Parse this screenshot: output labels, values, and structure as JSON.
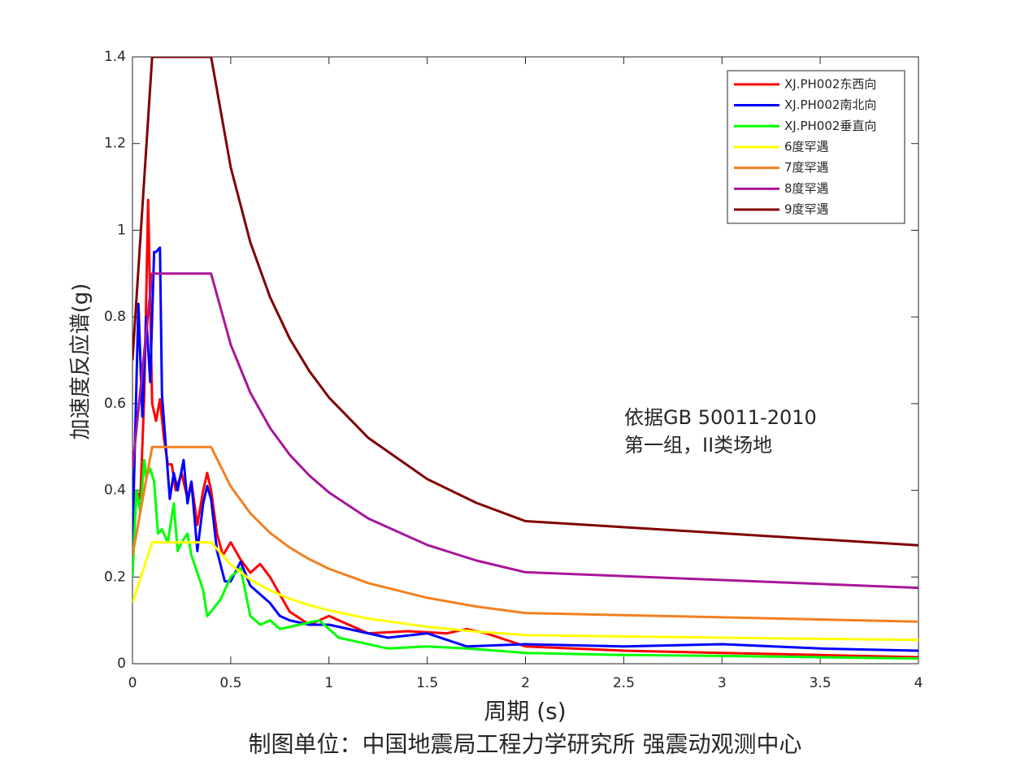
{
  "chart_data": {
    "type": "line",
    "xlabel": "周期 (s)",
    "ylabel": "加速度反应谱(g)",
    "annotations": [
      "依据GB 50011-2010",
      "第一组，II类场地"
    ],
    "caption": "制图单位：中国地震局工程力学研究所 强震动观测中心",
    "xlim": [
      0,
      4
    ],
    "ylim": [
      0,
      1.4
    ],
    "xticks": [
      0,
      0.5,
      1,
      1.5,
      2,
      2.5,
      3,
      3.5,
      4
    ],
    "yticks": [
      0,
      0.2,
      0.4,
      0.6,
      0.8,
      1,
      1.2,
      1.4
    ],
    "legend": "northeast",
    "series": [
      {
        "name": "XJ.PH002东西向",
        "color": "#ff0000",
        "x": [
          0,
          0.02,
          0.04,
          0.06,
          0.08,
          0.1,
          0.12,
          0.14,
          0.16,
          0.18,
          0.2,
          0.22,
          0.25,
          0.28,
          0.3,
          0.33,
          0.36,
          0.38,
          0.4,
          0.43,
          0.46,
          0.5,
          0.55,
          0.6,
          0.65,
          0.7,
          0.8,
          0.9,
          1.0,
          1.2,
          1.4,
          1.6,
          1.7,
          1.8,
          2.0,
          2.5,
          3.0,
          3.5,
          4.0
        ],
        "values": [
          0.25,
          0.4,
          0.38,
          0.62,
          1.07,
          0.6,
          0.56,
          0.61,
          0.52,
          0.46,
          0.46,
          0.4,
          0.44,
          0.38,
          0.42,
          0.32,
          0.4,
          0.44,
          0.4,
          0.3,
          0.25,
          0.28,
          0.24,
          0.21,
          0.23,
          0.2,
          0.12,
          0.09,
          0.11,
          0.07,
          0.075,
          0.07,
          0.08,
          0.07,
          0.04,
          0.03,
          0.025,
          0.02,
          0.015
        ]
      },
      {
        "name": "XJ.PH002南北向",
        "color": "#0000ff",
        "x": [
          0,
          0.03,
          0.05,
          0.07,
          0.09,
          0.11,
          0.12,
          0.14,
          0.15,
          0.17,
          0.19,
          0.21,
          0.23,
          0.26,
          0.28,
          0.3,
          0.33,
          0.36,
          0.38,
          0.4,
          0.43,
          0.47,
          0.5,
          0.55,
          0.6,
          0.7,
          0.75,
          0.8,
          0.9,
          1.0,
          1.2,
          1.3,
          1.5,
          1.7,
          2.0,
          2.5,
          3.0,
          3.5,
          4.0
        ],
        "values": [
          0.28,
          0.83,
          0.57,
          0.8,
          0.65,
          0.95,
          0.95,
          0.96,
          0.62,
          0.5,
          0.38,
          0.44,
          0.4,
          0.47,
          0.37,
          0.42,
          0.26,
          0.37,
          0.41,
          0.38,
          0.26,
          0.19,
          0.19,
          0.235,
          0.18,
          0.14,
          0.11,
          0.1,
          0.09,
          0.09,
          0.07,
          0.06,
          0.07,
          0.04,
          0.045,
          0.04,
          0.045,
          0.035,
          0.03
        ]
      },
      {
        "name": "XJ.PH002垂直向",
        "color": "#00ff00",
        "x": [
          0,
          0.02,
          0.04,
          0.06,
          0.07,
          0.09,
          0.11,
          0.13,
          0.15,
          0.18,
          0.21,
          0.23,
          0.25,
          0.28,
          0.3,
          0.33,
          0.36,
          0.38,
          0.4,
          0.45,
          0.5,
          0.55,
          0.6,
          0.65,
          0.7,
          0.75,
          0.85,
          0.95,
          1.05,
          1.15,
          1.3,
          1.5,
          1.7,
          2.0,
          2.5,
          3.0,
          3.5,
          4.0
        ],
        "values": [
          0.2,
          0.4,
          0.35,
          0.47,
          0.43,
          0.45,
          0.42,
          0.3,
          0.31,
          0.28,
          0.37,
          0.26,
          0.28,
          0.3,
          0.25,
          0.21,
          0.17,
          0.11,
          0.12,
          0.15,
          0.2,
          0.22,
          0.11,
          0.09,
          0.1,
          0.08,
          0.09,
          0.1,
          0.06,
          0.05,
          0.035,
          0.04,
          0.035,
          0.025,
          0.02,
          0.018,
          0.015,
          0.012
        ]
      },
      {
        "name": "6度罕遇",
        "color": "#ffff00",
        "x": [
          0,
          0.1,
          0.4,
          0.5,
          0.6,
          0.7,
          0.8,
          0.9,
          1.0,
          1.2,
          1.5,
          1.75,
          2.0,
          3.0,
          4.0
        ],
        "values": [
          0.14,
          0.28,
          0.28,
          0.229,
          0.194,
          0.169,
          0.15,
          0.135,
          0.123,
          0.104,
          0.085,
          0.074,
          0.066,
          0.06,
          0.055
        ]
      },
      {
        "name": "7度罕遇",
        "color": "#f28022",
        "x": [
          0,
          0.1,
          0.4,
          0.5,
          0.6,
          0.7,
          0.8,
          0.9,
          1.0,
          1.2,
          1.5,
          1.75,
          2.0,
          3.0,
          4.0
        ],
        "values": [
          0.25,
          0.5,
          0.5,
          0.409,
          0.347,
          0.302,
          0.268,
          0.241,
          0.219,
          0.186,
          0.152,
          0.132,
          0.117,
          0.107,
          0.097
        ]
      },
      {
        "name": "8度罕遇",
        "color": "#a8169a",
        "x": [
          0,
          0.1,
          0.4,
          0.5,
          0.6,
          0.7,
          0.8,
          0.9,
          1.0,
          1.2,
          1.5,
          1.75,
          2.0,
          3.0,
          4.0
        ],
        "values": [
          0.45,
          0.9,
          0.9,
          0.736,
          0.625,
          0.544,
          0.482,
          0.434,
          0.395,
          0.335,
          0.274,
          0.238,
          0.211,
          0.193,
          0.175
        ]
      },
      {
        "name": "9度罕遇",
        "color": "#800000",
        "x": [
          0,
          0.1,
          0.4,
          0.5,
          0.6,
          0.7,
          0.8,
          0.9,
          1.0,
          1.2,
          1.5,
          1.75,
          2.0,
          3.0,
          4.0
        ],
        "values": [
          0.7,
          1.4,
          1.4,
          1.145,
          0.972,
          0.846,
          0.75,
          0.675,
          0.614,
          0.521,
          0.426,
          0.371,
          0.329,
          0.301,
          0.273
        ]
      }
    ]
  }
}
